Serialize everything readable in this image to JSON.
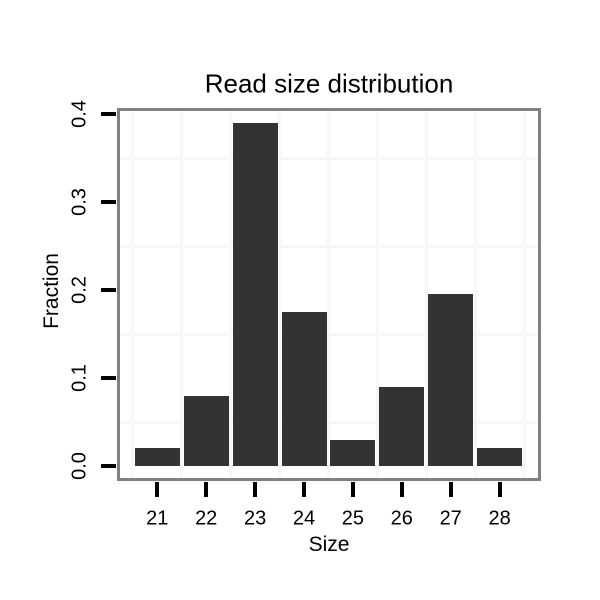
{
  "chart_data": {
    "type": "bar",
    "title": "Read size distribution",
    "xlabel": "Size",
    "ylabel": "Fraction",
    "categories": [
      "21",
      "22",
      "23",
      "24",
      "25",
      "26",
      "27",
      "28"
    ],
    "values": [
      0.02,
      0.08,
      0.39,
      0.175,
      0.03,
      0.09,
      0.195,
      0.02
    ],
    "y_tick_labels": [
      "0.0",
      "0.1",
      "0.2",
      "0.3",
      "0.4"
    ],
    "y_tick_values": [
      0.0,
      0.1,
      0.2,
      0.3,
      0.4
    ],
    "ylim": [
      0,
      0.405
    ],
    "grid": {
      "y_minor_values": [
        0.05,
        0.15,
        0.25,
        0.35
      ],
      "x_minor": "between-categories",
      "major_shown": false
    },
    "legend": "none",
    "colors": {
      "bar_fill": "#333333",
      "panel_border": "#818181",
      "grid_minor": "#f7f7f7",
      "tick": "#000000",
      "text": "#000000",
      "background": "#ffffff"
    }
  }
}
